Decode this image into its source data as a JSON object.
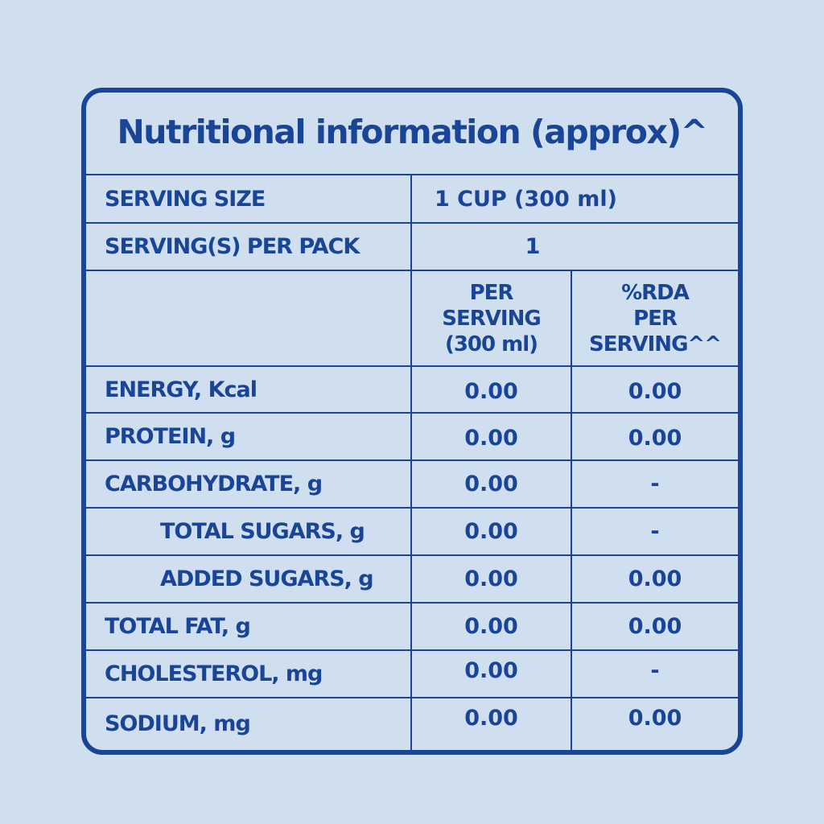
{
  "title": "Nutritional information (approx)^",
  "serving_size": {
    "label": "SERVING SIZE",
    "value": "1 CUP (300 ml)"
  },
  "servings_per_pack": {
    "label": "SERVING(S) PER PACK",
    "value": "1"
  },
  "column_headers": {
    "per_serving": "PER\nSERVING\n(300 ml)",
    "rda": "%RDA\nPER\nSERVING^^"
  },
  "rows": [
    {
      "label": "ENERGY, Kcal",
      "per_serving": "0.00",
      "rda": "0.00",
      "indent": false
    },
    {
      "label": "PROTEIN, g",
      "per_serving": "0.00",
      "rda": "0.00",
      "indent": false
    },
    {
      "label": "CARBOHYDRATE, g",
      "per_serving": "0.00",
      "rda": "-",
      "indent": false
    },
    {
      "label": "TOTAL SUGARS, g",
      "per_serving": "0.00",
      "rda": "-",
      "indent": true
    },
    {
      "label": "ADDED SUGARS, g",
      "per_serving": "0.00",
      "rda": "0.00",
      "indent": true
    },
    {
      "label": "TOTAL FAT, g",
      "per_serving": "0.00",
      "rda": "0.00",
      "indent": false
    },
    {
      "label": "CHOLESTEROL, mg",
      "per_serving": "0.00",
      "rda": "-",
      "indent": false
    },
    {
      "label": "SODIUM, mg",
      "per_serving": "0.00",
      "rda": "0.00",
      "indent": false
    }
  ],
  "colors": {
    "background": "#cfdff0",
    "ink": "#1a4596"
  }
}
